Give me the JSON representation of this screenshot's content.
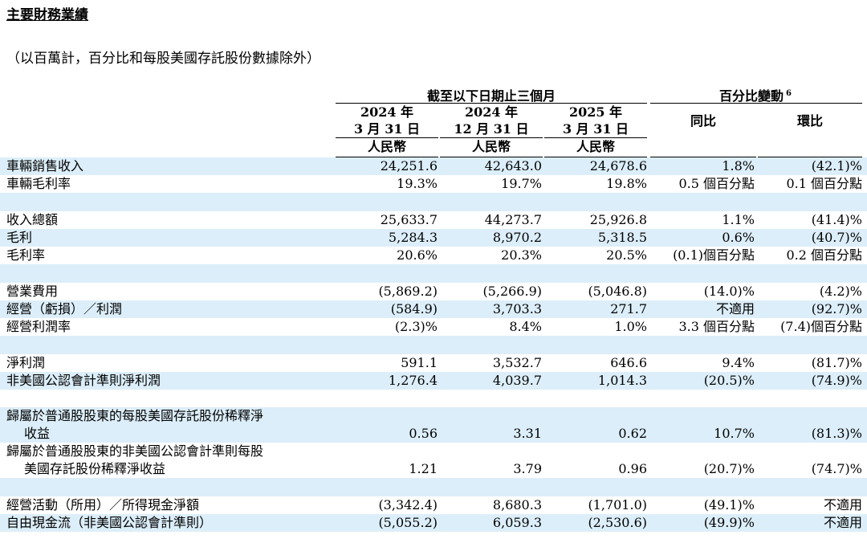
{
  "title": "主要財務業績",
  "subtitle": "（以百萬計，百分比和每股美國存託股份數據除外）",
  "header": {
    "group1": "截至以下日期止三個月",
    "group2": "百分比變動",
    "group2_note": "6",
    "columns": [
      {
        "line1": "2024 年",
        "line2": "3 月 31 日",
        "currency": "人民幣"
      },
      {
        "line1": "2024 年",
        "line2": "12 月 31 日",
        "currency": "人民幣"
      },
      {
        "line1": "2025 年",
        "line2": "3 月 31 日",
        "currency": "人民幣"
      }
    ],
    "yoy": "同比",
    "qoq": "環比"
  },
  "rows": [
    {
      "label": "車輛銷售收入",
      "v": [
        "24,251.6",
        "42,643.0",
        "24,678.6",
        "1.8%",
        "(42.1)%"
      ]
    },
    {
      "label": "車輛毛利率",
      "v": [
        "19.3%",
        "19.7%",
        "19.8%",
        "0.5 個百分點",
        "0.1 個百分點"
      ]
    },
    {
      "label": "收入總額",
      "v": [
        "25,633.7",
        "44,273.7",
        "25,926.8",
        "1.1%",
        "(41.4)%"
      ]
    },
    {
      "label": "毛利",
      "v": [
        "5,284.3",
        "8,970.2",
        "5,318.5",
        "0.6%",
        "(40.7)%"
      ]
    },
    {
      "label": "毛利率",
      "v": [
        "20.6%",
        "20.3%",
        "20.5%",
        "(0.1)個百分點",
        "0.2 個百分點"
      ]
    },
    {
      "label": "營業費用",
      "v": [
        "(5,869.2)",
        "(5,266.9)",
        "(5,046.8)",
        "(14.0)%",
        "(4.2)%"
      ]
    },
    {
      "label": "經營（虧損）／利潤",
      "v": [
        "(584.9)",
        "3,703.3",
        "271.7",
        "不適用",
        "(92.7)%"
      ]
    },
    {
      "label": "經營利潤率",
      "v": [
        "(2.3)%",
        "8.4%",
        "1.0%",
        "3.3 個百分點",
        "(7.4)個百分點"
      ]
    },
    {
      "label": "淨利潤",
      "v": [
        "591.1",
        "3,532.7",
        "646.6",
        "9.4%",
        "(81.7)%"
      ]
    },
    {
      "label": "非美國公認會計準則淨利潤",
      "v": [
        "1,276.4",
        "4,039.7",
        "1,014.3",
        "(20.5)%",
        "(74.9)%"
      ]
    },
    {
      "label1": "歸屬於普通股股東的每股美國存託股份稀釋淨",
      "label2": "收益",
      "v": [
        "0.56",
        "3.31",
        "0.62",
        "10.7%",
        "(81.3)%"
      ]
    },
    {
      "label1": "歸屬於普通股股東的非美國公認會計準則每股",
      "label2": "美國存託股份稀釋淨收益",
      "v": [
        "1.21",
        "3.79",
        "0.96",
        "(20.7)%",
        "(74.7)%"
      ]
    },
    {
      "label": "經營活動（所用）／所得現金淨額",
      "v": [
        "(3,342.4)",
        "8,680.3",
        "(1,701.0)",
        "(49.1)%",
        "不適用"
      ]
    },
    {
      "label": "自由現金流（非美國公認會計準則）",
      "v": [
        "(5,055.2)",
        "6,059.3",
        "(2,530.6)",
        "(49.9)%",
        "不適用"
      ]
    }
  ]
}
